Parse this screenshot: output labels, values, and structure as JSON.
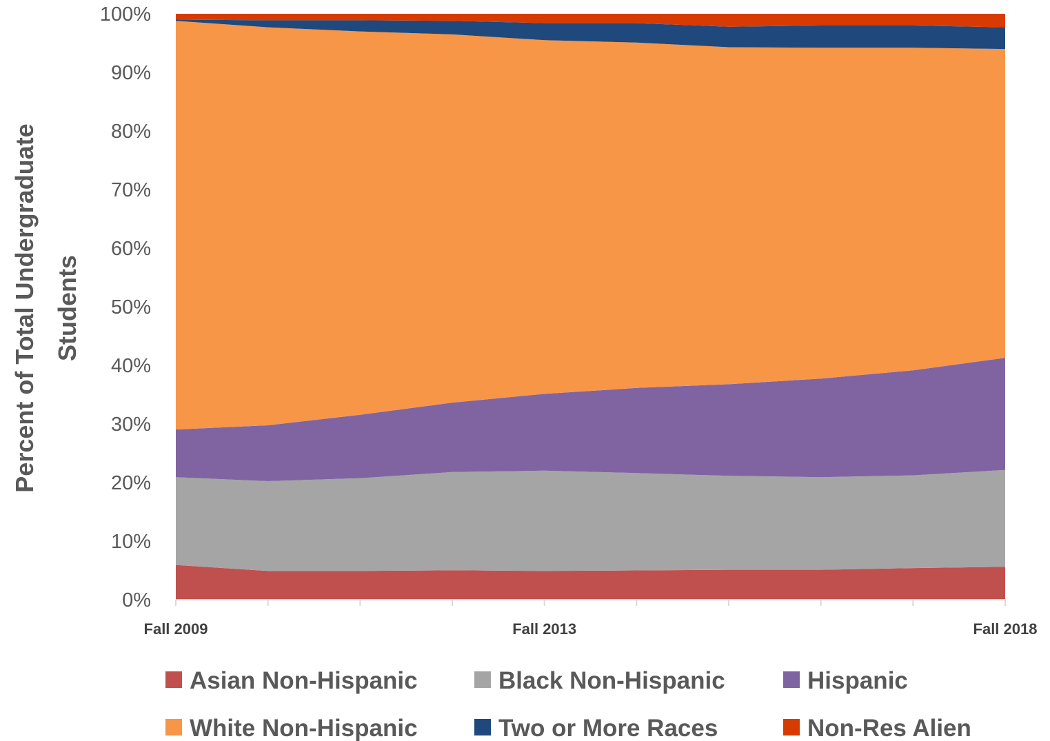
{
  "chart_data": {
    "type": "area",
    "stacked": "percent",
    "ylabel_lines": [
      "Percent of Total Undergraduate",
      "Students"
    ],
    "x": [
      "Fall 2009",
      "Fall 2010",
      "Fall 2011",
      "Fall 2012",
      "Fall 2013",
      "Fall 2014",
      "Fall 2015",
      "Fall 2016",
      "Fall 2017",
      "Fall 2018"
    ],
    "x_tick_labels": [
      {
        "index": 0,
        "label": "Fall 2009"
      },
      {
        "index": 4,
        "label": "Fall 2013"
      },
      {
        "index": 9,
        "label": "Fall 2018"
      }
    ],
    "y_ticks": [
      "0%",
      "10%",
      "20%",
      "30%",
      "40%",
      "50%",
      "60%",
      "70%",
      "80%",
      "90%",
      "100%"
    ],
    "ylim": [
      0,
      100
    ],
    "grid": false,
    "legend_position": "bottom",
    "series": [
      {
        "name": "Asian Non-Hispanic",
        "color": "#c0504d",
        "values": [
          5.9,
          4.9,
          4.9,
          5.0,
          4.9,
          5.0,
          5.1,
          5.1,
          5.4,
          5.6
        ]
      },
      {
        "name": "Black Non-Hispanic",
        "color": "#a5a5a5",
        "values": [
          14.9,
          15.3,
          15.8,
          16.7,
          17.1,
          16.6,
          16.0,
          15.8,
          15.8,
          16.5
        ]
      },
      {
        "name": "Hispanic",
        "color": "#8064a2",
        "values": [
          8.1,
          9.5,
          10.8,
          11.8,
          13.1,
          14.5,
          15.6,
          16.8,
          17.9,
          19.1
        ]
      },
      {
        "name": "White Non-Hispanic",
        "color": "#f79646",
        "values": [
          69.4,
          67.8,
          65.3,
          62.6,
          60.3,
          58.9,
          57.4,
          56.4,
          55.0,
          52.6
        ]
      },
      {
        "name": "Two or More Races",
        "color": "#1f497d",
        "values": [
          0.2,
          1.2,
          1.9,
          2.3,
          2.9,
          3.3,
          3.5,
          3.8,
          3.8,
          3.7
        ]
      },
      {
        "name": "Non-Res Alien",
        "color": "#d83b01",
        "values": [
          1.0,
          1.1,
          1.1,
          1.2,
          1.6,
          1.6,
          2.2,
          2.0,
          2.0,
          2.3
        ]
      }
    ]
  }
}
